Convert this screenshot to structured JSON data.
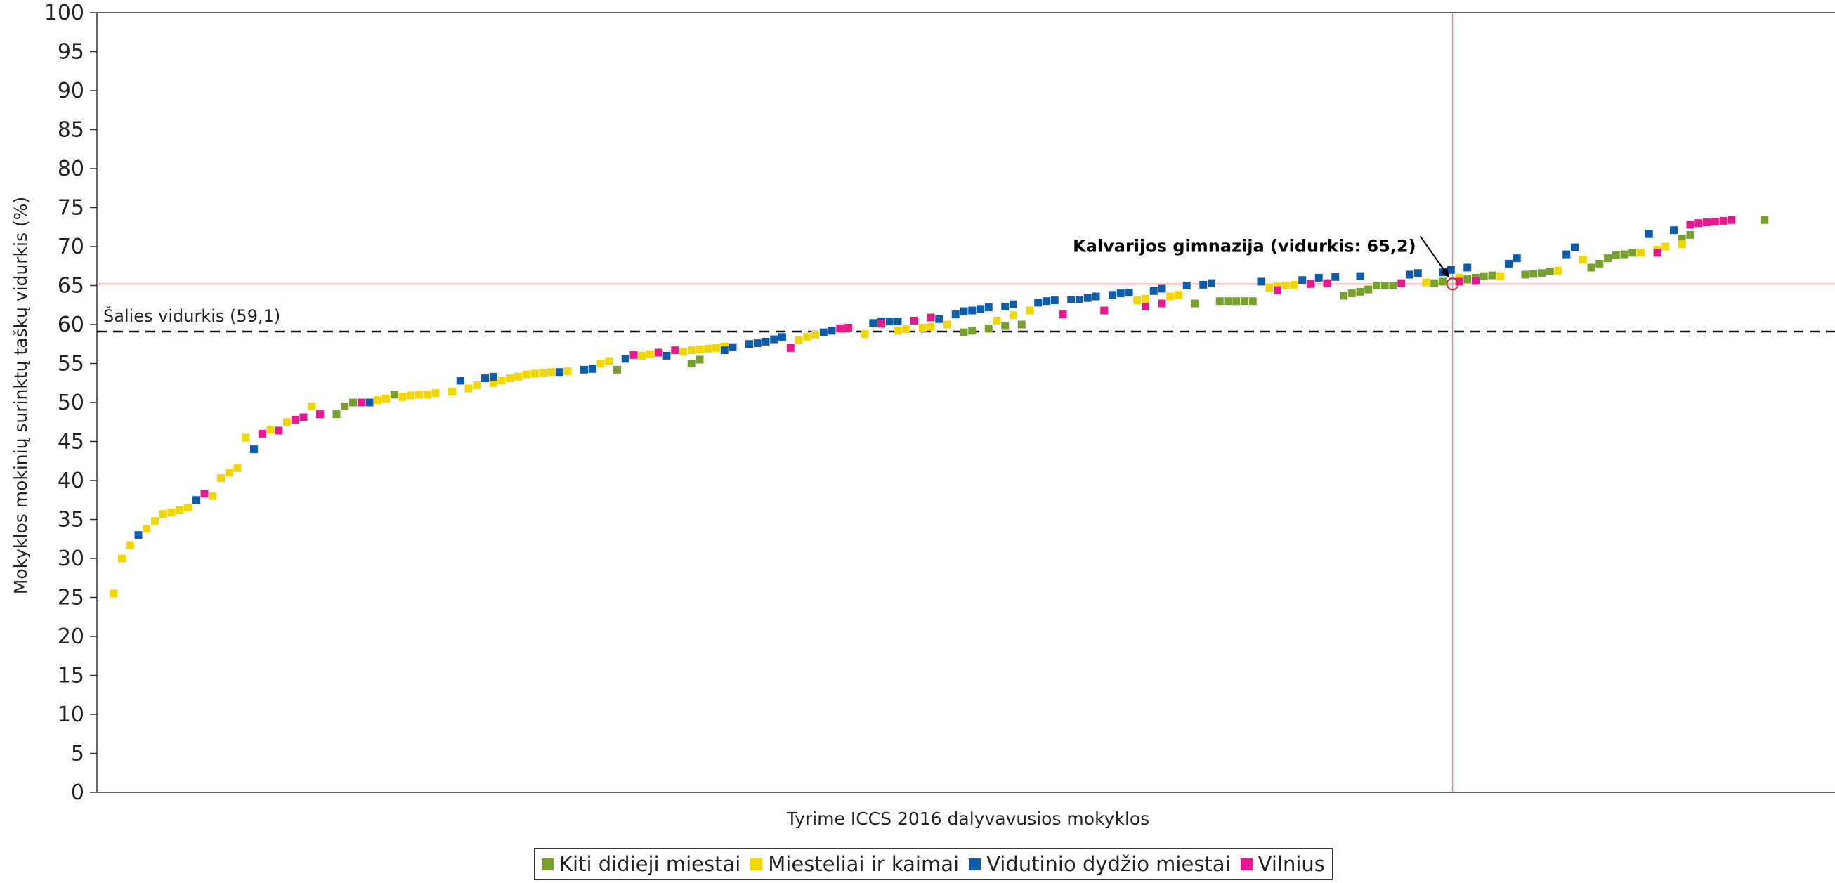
{
  "chart_data": {
    "type": "scatter",
    "ylabel": "Mokyklos mokinių surinktų taškų vidurkis (%)",
    "xlabel": "Tyrime ICCS 2016 dalyvavusios mokyklos",
    "ylim": [
      0,
      100
    ],
    "xlim": [
      0,
      200
    ],
    "yticks": [
      "0",
      "5",
      "10",
      "15",
      "20",
      "25",
      "30",
      "35",
      "40",
      "45",
      "50",
      "55",
      "60",
      "65",
      "70",
      "75",
      "80",
      "85",
      "90",
      "95",
      "100"
    ],
    "ytick_values": [
      0,
      5,
      10,
      15,
      20,
      25,
      30,
      35,
      40,
      45,
      50,
      55,
      60,
      65,
      70,
      75,
      80,
      85,
      90,
      95,
      100
    ],
    "grid": false,
    "legend_position": "bottom",
    "colors": {
      "Kiti didieji miestai": "#77a02c",
      "Miesteliai ir kaimai": "#f2d600",
      "Vidutinio dydžio miestai": "#0f5cab",
      "Vilnius": "#e6198f"
    },
    "series": [
      {
        "name": "Kiti didieji miestai",
        "x": [
          28,
          29,
          30,
          35,
          62,
          71,
          72,
          104,
          105,
          107,
          109,
          111,
          132,
          135,
          136,
          137,
          138,
          139,
          150,
          151,
          152,
          153,
          154,
          155,
          156,
          161,
          162,
          165,
          166,
          167,
          168,
          172,
          173,
          174,
          175,
          180,
          181,
          182,
          183,
          184,
          185,
          191,
          192,
          201
        ],
        "y": [
          48.5,
          49.5,
          50,
          51,
          54.2,
          55,
          55.5,
          59,
          59.2,
          59.5,
          59.8,
          60,
          62.7,
          63,
          63,
          63,
          63,
          63,
          63.7,
          64,
          64.2,
          64.5,
          65,
          65,
          65,
          65.3,
          65.5,
          65.8,
          66,
          66.2,
          66.3,
          66.4,
          66.5,
          66.6,
          66.8,
          67.3,
          67.8,
          68.5,
          68.9,
          69,
          69.2,
          71,
          71.5,
          73.4
        ]
      },
      {
        "name": "Miesteliai ir kaimai",
        "x": [
          1,
          2,
          3,
          5,
          6,
          7,
          8,
          9,
          10,
          13,
          14,
          15,
          16,
          17,
          20,
          22,
          25,
          33,
          34,
          36,
          37,
          38,
          39,
          40,
          42,
          44,
          45,
          47,
          48,
          49,
          50,
          51,
          52,
          53,
          54,
          56,
          60,
          61,
          65,
          66,
          70,
          71,
          72,
          73,
          74,
          75,
          84,
          85,
          86,
          92,
          96,
          97,
          99,
          100,
          102,
          108,
          110,
          112,
          125,
          126,
          129,
          130,
          141,
          142,
          143,
          144,
          160,
          164,
          169,
          176,
          179,
          186,
          188,
          189,
          191
        ],
        "y": [
          25.5,
          30,
          31.7,
          33.8,
          34.8,
          35.7,
          35.9,
          36.2,
          36.5,
          38,
          40.3,
          41,
          41.6,
          45.5,
          46.5,
          47.5,
          49.5,
          50.3,
          50.5,
          50.7,
          50.9,
          51,
          51,
          51.2,
          51.4,
          51.8,
          52.2,
          52.5,
          52.8,
          53.1,
          53.3,
          53.6,
          53.7,
          53.8,
          53.9,
          54,
          55,
          55.3,
          56,
          56.2,
          56.5,
          56.7,
          56.8,
          56.9,
          57,
          57.2,
          58,
          58.4,
          58.7,
          58.8,
          59.2,
          59.4,
          59.6,
          59.7,
          60,
          60.5,
          61.2,
          61.8,
          63.1,
          63.3,
          63.6,
          63.8,
          64.7,
          64.9,
          65,
          65.1,
          65.4,
          66,
          66.2,
          66.9,
          68.3,
          69.2,
          69.6,
          70,
          70.3
        ]
      },
      {
        "name": "Vidutinio dydžio miestai",
        "x": [
          4,
          11,
          18,
          32,
          43,
          46,
          47,
          55,
          58,
          59,
          63,
          68,
          75,
          76,
          78,
          79,
          80,
          81,
          82,
          87,
          88,
          93,
          94,
          95,
          96,
          101,
          103,
          104,
          105,
          106,
          107,
          109,
          110,
          113,
          114,
          115,
          117,
          118,
          119,
          120,
          122,
          123,
          124,
          127,
          128,
          131,
          133,
          134,
          140,
          145,
          147,
          149,
          152,
          158,
          159,
          162,
          163,
          165,
          170,
          171,
          177,
          178,
          187,
          190
        ],
        "y": [
          33,
          37.5,
          44,
          50,
          52.8,
          53.1,
          53.3,
          53.9,
          54.2,
          54.3,
          55.6,
          56,
          56.7,
          57.1,
          57.5,
          57.6,
          57.8,
          58.1,
          58.4,
          59,
          59.2,
          60.2,
          60.4,
          60.4,
          60.4,
          60.7,
          61.3,
          61.7,
          61.8,
          62,
          62.2,
          62.3,
          62.6,
          62.8,
          63,
          63.1,
          63.2,
          63.2,
          63.4,
          63.6,
          63.8,
          64,
          64.1,
          64.3,
          64.6,
          65,
          65.1,
          65.3,
          65.5,
          65.7,
          66,
          66.1,
          66.2,
          66.4,
          66.6,
          66.7,
          67,
          67.3,
          67.8,
          68.5,
          69,
          69.9,
          71.6,
          72.1
        ]
      },
      {
        "name": "Vilnius",
        "x": [
          12,
          19,
          21,
          23,
          24,
          26,
          31,
          64,
          67,
          69,
          83,
          89,
          90,
          94,
          98,
          100,
          116,
          121,
          126,
          128,
          142,
          146,
          148,
          157,
          164,
          166,
          188,
          192,
          193,
          194,
          195,
          196,
          197
        ],
        "y": [
          38.3,
          46,
          46.4,
          47.8,
          48.1,
          48.5,
          50,
          56.1,
          56.4,
          56.7,
          57,
          59.5,
          59.6,
          60.1,
          60.5,
          60.9,
          61.3,
          61.8,
          62.3,
          62.7,
          64.4,
          65.2,
          65.3,
          65.3,
          65.5,
          65.6,
          69.2,
          72.8,
          73.0,
          73.1,
          73.2,
          73.3,
          73.4
        ]
      }
    ],
    "reference_lines": [
      {
        "label": "Šalies vidurkis (59,1)",
        "y": 59.1,
        "style": "dashed",
        "color": "#111111"
      },
      {
        "label": "",
        "y": 65.2,
        "style": "solid",
        "color": "#f08a8a"
      },
      {
        "label": "",
        "x": 163.2,
        "style": "solid",
        "color": "#f08a8a"
      }
    ],
    "highlight": {
      "label": "Kalvarijos gimnazija (vidurkis: 65,2)",
      "x": 163.2,
      "y": 65.2
    }
  }
}
